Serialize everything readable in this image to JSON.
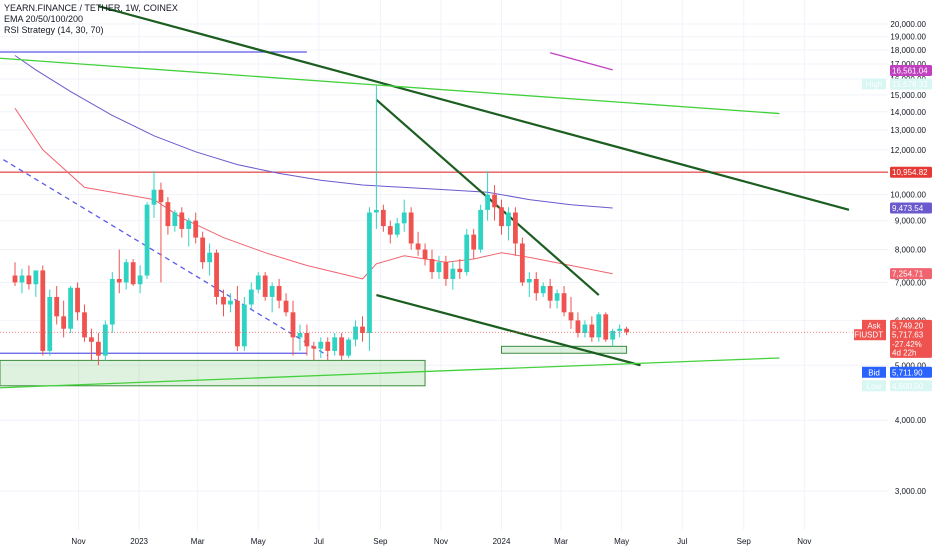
{
  "legend": {
    "title": "YEARN.FINANCE / TETHER, 1W, COINEX",
    "ema": "EMA 20/50/100/200",
    "rsi": "RSI Strategy (14, 30, 70)"
  },
  "colors": {
    "up": "#26a69a",
    "up_fill": "#2fd3c3",
    "down": "#ef5350",
    "ema_red": "#f06470",
    "ema_purple": "#6a5acd",
    "trend_dark_green": "#1b5e20",
    "trend_light_green": "#43d13b",
    "horizontal_blue": "#5b5be8",
    "horizontal_red": "#e53935",
    "magenta": "#c040c0"
  },
  "chart_data": {
    "type": "candlestick",
    "symbol": "YFIUSDT",
    "timeframe": "1W",
    "price_axis": {
      "scale": "log",
      "range": [
        2800,
        21000
      ],
      "ticks": [
        20000,
        19000,
        18000,
        17000,
        16000,
        15000,
        14000,
        13000,
        12000,
        11000,
        10000,
        9000,
        8000,
        7000,
        6000,
        5000,
        4000,
        3000
      ],
      "tick_labels": [
        "20,000.00",
        "19,000.00",
        "18,000.00",
        "17,000.00",
        "16,000.00",
        "15,000.00",
        "14,000.00",
        "13,000.00",
        "12,000.00",
        "11,000.00",
        "10,000.00",
        "9,000.00",
        "8,000.00",
        "7,000.00",
        "6,000.00",
        "5,000.00",
        "4,000.00",
        "3,000.00"
      ]
    },
    "time_axis": {
      "start_week": "2022-08-29",
      "labels": [
        {
          "label": "Nov",
          "date": "2022-11-01"
        },
        {
          "label": "2023",
          "date": "2023-01-01"
        },
        {
          "label": "Mar",
          "date": "2023-03-01"
        },
        {
          "label": "May",
          "date": "2023-05-01"
        },
        {
          "label": "Jul",
          "date": "2023-07-01"
        },
        {
          "label": "Sep",
          "date": "2023-09-01"
        },
        {
          "label": "Nov",
          "date": "2023-11-01"
        },
        {
          "label": "2024",
          "date": "2024-01-01"
        },
        {
          "label": "Mar",
          "date": "2024-03-01"
        },
        {
          "label": "May",
          "date": "2024-05-01"
        },
        {
          "label": "Jul",
          "date": "2024-07-01"
        },
        {
          "label": "Sep",
          "date": "2024-09-01"
        },
        {
          "label": "Nov",
          "date": "2024-11-01"
        }
      ]
    },
    "candles": [
      [
        7200,
        7600,
        6900,
        7000
      ],
      [
        7000,
        7400,
        6700,
        7200
      ],
      [
        7200,
        7500,
        6800,
        6950
      ],
      [
        6950,
        7300,
        6600,
        7350
      ],
      [
        7350,
        7500,
        5200,
        5300
      ],
      [
        5300,
        6800,
        5200,
        6600
      ],
      [
        6600,
        6900,
        5900,
        6100
      ],
      [
        6100,
        6500,
        5600,
        5800
      ],
      [
        5800,
        6900,
        5700,
        6850
      ],
      [
        6850,
        7000,
        6000,
        6200
      ],
      [
        6200,
        6400,
        5500,
        5600
      ],
      [
        5600,
        5800,
        5100,
        5500
      ],
      [
        5500,
        5700,
        5000,
        5200
      ],
      [
        5200,
        6000,
        5100,
        5900
      ],
      [
        5900,
        7300,
        5700,
        7100
      ],
      [
        7100,
        8000,
        6700,
        7000
      ],
      [
        7000,
        7700,
        6800,
        7600
      ],
      [
        7600,
        7700,
        6900,
        6950
      ],
      [
        6950,
        7500,
        6700,
        7200
      ],
      [
        7200,
        9700,
        7100,
        9600
      ],
      [
        9600,
        11000,
        9100,
        10200
      ],
      [
        10200,
        10500,
        7000,
        9700
      ],
      [
        9700,
        9900,
        8500,
        8800
      ],
      [
        8800,
        9400,
        8600,
        9300
      ],
      [
        9300,
        9500,
        8400,
        8700
      ],
      [
        8700,
        9100,
        8100,
        9000
      ],
      [
        9000,
        9300,
        8200,
        8400
      ],
      [
        8400,
        8600,
        7400,
        7600
      ],
      [
        7600,
        8200,
        7200,
        7900
      ],
      [
        7900,
        8000,
        6400,
        6600
      ],
      [
        6600,
        6800,
        6100,
        6400
      ],
      [
        6400,
        6700,
        6200,
        6500
      ],
      [
        6500,
        6900,
        5300,
        5400
      ],
      [
        5400,
        6600,
        5300,
        6400
      ],
      [
        6400,
        7000,
        6300,
        6800
      ],
      [
        6800,
        7300,
        6700,
        7200
      ],
      [
        7200,
        7300,
        6500,
        6600
      ],
      [
        6600,
        7000,
        6200,
        6900
      ],
      [
        6900,
        7100,
        6300,
        6500
      ],
      [
        6500,
        6700,
        6100,
        6200
      ],
      [
        6200,
        6500,
        5200,
        5600
      ],
      [
        5600,
        5900,
        5300,
        5700
      ],
      [
        5700,
        5900,
        5200,
        5400
      ],
      [
        5400,
        5500,
        5100,
        5350
      ],
      [
        5350,
        5600,
        5150,
        5500
      ],
      [
        5500,
        5600,
        5100,
        5300
      ],
      [
        5300,
        5700,
        5200,
        5600
      ],
      [
        5600,
        5700,
        5100,
        5200
      ],
      [
        5200,
        5600,
        5150,
        5550
      ],
      [
        5550,
        6000,
        5400,
        5850
      ],
      [
        5850,
        6100,
        5500,
        5700
      ],
      [
        5700,
        9500,
        5300,
        9300
      ],
      [
        9300,
        15600,
        8700,
        9400
      ],
      [
        9400,
        9600,
        8600,
        8800
      ],
      [
        8800,
        9000,
        8200,
        8500
      ],
      [
        8500,
        9100,
        8400,
        8900
      ],
      [
        8900,
        9800,
        8600,
        9300
      ],
      [
        9300,
        9500,
        8000,
        8200
      ],
      [
        8200,
        8600,
        7800,
        8000
      ],
      [
        8000,
        8200,
        7500,
        7700
      ],
      [
        7700,
        8000,
        7100,
        7300
      ],
      [
        7300,
        7800,
        7100,
        7600
      ],
      [
        7600,
        7800,
        6900,
        7100
      ],
      [
        7100,
        7600,
        6800,
        7400
      ],
      [
        7400,
        7700,
        7100,
        7300
      ],
      [
        7300,
        8700,
        7200,
        8500
      ],
      [
        8500,
        8700,
        7700,
        8000
      ],
      [
        8000,
        9600,
        7900,
        9400
      ],
      [
        9400,
        11000,
        9000,
        10000
      ],
      [
        10000,
        10400,
        9000,
        9500
      ],
      [
        9500,
        9800,
        8500,
        8800
      ],
      [
        8800,
        9500,
        8300,
        9300
      ],
      [
        9300,
        9500,
        7800,
        8200
      ],
      [
        8200,
        8400,
        6900,
        7000
      ],
      [
        7000,
        7300,
        6600,
        7100
      ],
      [
        7100,
        7300,
        6500,
        6700
      ],
      [
        6700,
        7000,
        6600,
        6900
      ],
      [
        6900,
        7100,
        6300,
        6500
      ],
      [
        6500,
        6800,
        6300,
        6700
      ],
      [
        6700,
        6900,
        6100,
        6200
      ],
      [
        6200,
        6600,
        5800,
        6000
      ],
      [
        6000,
        6200,
        5600,
        5700
      ],
      [
        5700,
        6000,
        5600,
        5900
      ],
      [
        5900,
        6100,
        5500,
        5600
      ],
      [
        5600,
        6200,
        5500,
        6150
      ],
      [
        6150,
        6200,
        5500,
        5550
      ],
      [
        5550,
        5800,
        5400,
        5750
      ],
      [
        5750,
        5900,
        5600,
        5800
      ],
      [
        5800,
        5850,
        5650,
        5717
      ]
    ],
    "ema_series": [
      {
        "color": "#f06470",
        "start_week": 0,
        "points": [
          [
            0,
            14200
          ],
          [
            4,
            12000
          ],
          [
            10,
            10300
          ],
          [
            16,
            10000
          ],
          [
            20,
            9800
          ],
          [
            24,
            9100
          ],
          [
            30,
            8400
          ],
          [
            36,
            7900
          ],
          [
            42,
            7500
          ],
          [
            48,
            7200
          ],
          [
            50,
            7100
          ],
          [
            52,
            7550
          ],
          [
            56,
            7800
          ],
          [
            62,
            7600
          ],
          [
            66,
            7700
          ],
          [
            70,
            7900
          ],
          [
            74,
            7750
          ],
          [
            80,
            7500
          ],
          [
            86,
            7250
          ]
        ]
      },
      {
        "color": "#6a5acd",
        "start_week": 0,
        "points": [
          [
            0,
            17600
          ],
          [
            3,
            16600
          ],
          [
            8,
            15200
          ],
          [
            14,
            13800
          ],
          [
            20,
            12700
          ],
          [
            26,
            11900
          ],
          [
            32,
            11300
          ],
          [
            38,
            10900
          ],
          [
            44,
            10600
          ],
          [
            50,
            10400
          ],
          [
            56,
            10300
          ],
          [
            62,
            10200
          ],
          [
            68,
            10100
          ],
          [
            74,
            9800
          ],
          [
            80,
            9600
          ],
          [
            86,
            9470
          ]
        ]
      }
    ],
    "trendlines": [
      {
        "color": "#1b5e20",
        "from": [
          12,
          21500
        ],
        "to": [
          120,
          9400
        ]
      },
      {
        "color": "#1b5e20",
        "from": [
          52,
          14700
        ],
        "to": [
          84,
          6650
        ]
      },
      {
        "color": "#1b5e20",
        "from": [
          52,
          6650
        ],
        "to": [
          90,
          5000
        ]
      },
      {
        "color": "#43d13b",
        "from": [
          -5,
          17500
        ],
        "to": [
          110,
          13900
        ]
      },
      {
        "color": "#43d13b",
        "from": [
          -5,
          4550
        ],
        "to": [
          110,
          5150
        ]
      },
      {
        "color": "#5b5be8",
        "dash": true,
        "from": [
          -5,
          12200
        ],
        "to": [
          45,
          5200
        ]
      },
      {
        "color": "#c040c0",
        "from": [
          77,
          17800
        ],
        "to": [
          86,
          16600
        ]
      }
    ],
    "horizontal_lines": [
      {
        "price": 17850,
        "color": "#5b5be8",
        "from_week": -5,
        "to_week": 42
      },
      {
        "price": 10954.82,
        "color": "#e53935",
        "from_week": -5,
        "to_week": 42
      },
      {
        "price": 10954.82,
        "color": "#e53935",
        "from_week": 42,
        "to_week": 999
      },
      {
        "price": 5250,
        "color": "#5b5be8",
        "from_week": -5,
        "to_week": 42
      }
    ],
    "zones": [
      {
        "from_week": -5,
        "to_week": 59,
        "high": 5100,
        "low": 4600
      },
      {
        "from_week": 70,
        "to_week": 88,
        "high": 5400,
        "low": 5250
      }
    ],
    "price_tags": [
      {
        "label": "",
        "value": "16,561.04",
        "price": 16561.04,
        "color": "#c040c0"
      },
      {
        "label": "High",
        "value": "15,678.33",
        "price": 15678.33,
        "color": "#2fd3c3"
      },
      {
        "label": "",
        "value": "10,954.82",
        "price": 10954.82,
        "color": "#e53935"
      },
      {
        "label": "",
        "value": "9,473.54",
        "price": 9473.54,
        "color": "#6a5acd"
      },
      {
        "label": "",
        "value": "7,254.71",
        "price": 7254.71,
        "color": "#f06470"
      },
      {
        "label": "Ask",
        "value": "5,749.20",
        "price": 5880,
        "color": "#ef5350"
      },
      {
        "label": "YFIUSDT",
        "value": "5,717.63",
        "price": 5660,
        "color": "#ef5350"
      },
      {
        "label": "",
        "value": "-27.42%",
        "price": 5455,
        "color": "#ef5350"
      },
      {
        "label": "",
        "value": "4d 22h",
        "price": 5270,
        "color": "#ef5350"
      },
      {
        "label": "Bid",
        "value": "5,711.90",
        "price": 4860,
        "color": "#2962ff"
      },
      {
        "label": "Low",
        "value": "4,600.00",
        "price": 4600,
        "color": "#2fd3c3"
      }
    ]
  }
}
